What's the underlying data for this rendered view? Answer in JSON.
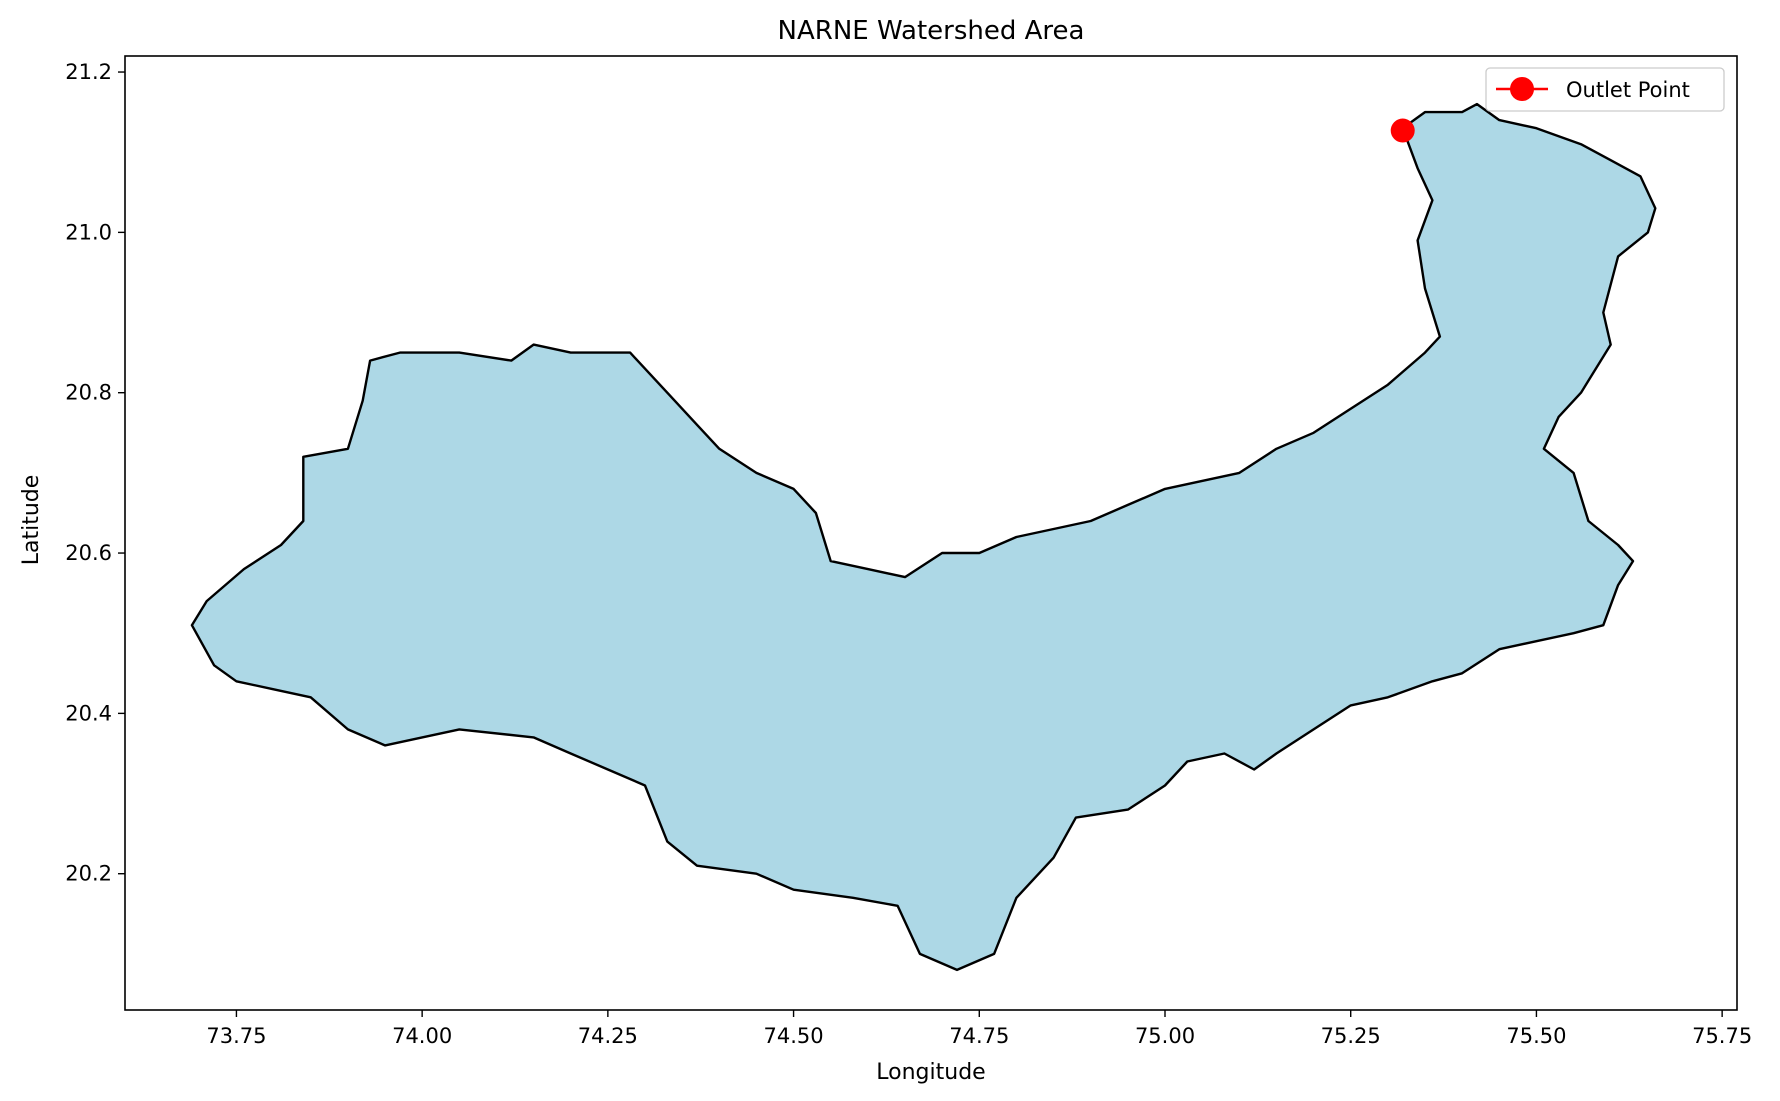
{
  "chart_data": {
    "type": "map",
    "title": "NARNE Watershed Area",
    "xlabel": "Longitude",
    "ylabel": "Latitude",
    "xlim": [
      73.6,
      75.77
    ],
    "ylim": [
      20.03,
      21.22
    ],
    "xticks": [
      "73.75",
      "74.00",
      "74.25",
      "74.50",
      "74.75",
      "75.00",
      "75.25",
      "75.50",
      "75.75"
    ],
    "yticks": [
      "20.2",
      "20.4",
      "20.6",
      "20.8",
      "21.0",
      "21.2"
    ],
    "grid": false,
    "legend": {
      "position": "top-right",
      "entries": [
        "Outlet Point"
      ]
    },
    "watershed": {
      "fill": "#add8e6",
      "edge": "#000000",
      "boundary": [
        [
          75.32,
          21.13
        ],
        [
          75.35,
          21.15
        ],
        [
          75.4,
          21.15
        ],
        [
          75.42,
          21.16
        ],
        [
          75.45,
          21.14
        ],
        [
          75.5,
          21.13
        ],
        [
          75.56,
          21.11
        ],
        [
          75.6,
          21.09
        ],
        [
          75.64,
          21.07
        ],
        [
          75.66,
          21.03
        ],
        [
          75.65,
          21.0
        ],
        [
          75.61,
          20.97
        ],
        [
          75.59,
          20.9
        ],
        [
          75.6,
          20.86
        ],
        [
          75.56,
          20.8
        ],
        [
          75.53,
          20.77
        ],
        [
          75.51,
          20.73
        ],
        [
          75.55,
          20.7
        ],
        [
          75.57,
          20.64
        ],
        [
          75.61,
          20.61
        ],
        [
          75.63,
          20.59
        ],
        [
          75.61,
          20.56
        ],
        [
          75.59,
          20.51
        ],
        [
          75.55,
          20.5
        ],
        [
          75.5,
          20.49
        ],
        [
          75.45,
          20.48
        ],
        [
          75.4,
          20.45
        ],
        [
          75.36,
          20.44
        ],
        [
          75.3,
          20.42
        ],
        [
          75.25,
          20.41
        ],
        [
          75.2,
          20.38
        ],
        [
          75.15,
          20.35
        ],
        [
          75.12,
          20.33
        ],
        [
          75.08,
          20.35
        ],
        [
          75.03,
          20.34
        ],
        [
          75.0,
          20.31
        ],
        [
          74.95,
          20.28
        ],
        [
          74.88,
          20.27
        ],
        [
          74.85,
          20.22
        ],
        [
          74.8,
          20.17
        ],
        [
          74.77,
          20.1
        ],
        [
          74.72,
          20.08
        ],
        [
          74.67,
          20.1
        ],
        [
          74.64,
          20.16
        ],
        [
          74.58,
          20.17
        ],
        [
          74.5,
          20.18
        ],
        [
          74.45,
          20.2
        ],
        [
          74.37,
          20.21
        ],
        [
          74.33,
          20.24
        ],
        [
          74.3,
          20.31
        ],
        [
          74.25,
          20.33
        ],
        [
          74.2,
          20.35
        ],
        [
          74.15,
          20.37
        ],
        [
          74.05,
          20.38
        ],
        [
          74.0,
          20.37
        ],
        [
          73.95,
          20.36
        ],
        [
          73.9,
          20.38
        ],
        [
          73.85,
          20.42
        ],
        [
          73.8,
          20.43
        ],
        [
          73.75,
          20.44
        ],
        [
          73.72,
          20.46
        ],
        [
          73.69,
          20.51
        ],
        [
          73.71,
          20.54
        ],
        [
          73.76,
          20.58
        ],
        [
          73.81,
          20.61
        ],
        [
          73.84,
          20.64
        ],
        [
          73.84,
          20.72
        ],
        [
          73.9,
          20.73
        ],
        [
          73.92,
          20.79
        ],
        [
          73.93,
          20.84
        ],
        [
          73.97,
          20.85
        ],
        [
          74.05,
          20.85
        ],
        [
          74.12,
          20.84
        ],
        [
          74.15,
          20.86
        ],
        [
          74.2,
          20.85
        ],
        [
          74.28,
          20.85
        ],
        [
          74.33,
          20.8
        ],
        [
          74.37,
          20.76
        ],
        [
          74.4,
          20.73
        ],
        [
          74.45,
          20.7
        ],
        [
          74.5,
          20.68
        ],
        [
          74.53,
          20.65
        ],
        [
          74.55,
          20.59
        ],
        [
          74.6,
          20.58
        ],
        [
          74.65,
          20.57
        ],
        [
          74.7,
          20.6
        ],
        [
          74.75,
          20.6
        ],
        [
          74.8,
          20.62
        ],
        [
          74.85,
          20.63
        ],
        [
          74.9,
          20.64
        ],
        [
          74.95,
          20.66
        ],
        [
          75.0,
          20.68
        ],
        [
          75.05,
          20.69
        ],
        [
          75.1,
          20.7
        ],
        [
          75.15,
          20.73
        ],
        [
          75.2,
          20.75
        ],
        [
          75.25,
          20.78
        ],
        [
          75.3,
          20.81
        ],
        [
          75.35,
          20.85
        ],
        [
          75.37,
          20.87
        ],
        [
          75.35,
          20.93
        ],
        [
          75.34,
          20.99
        ],
        [
          75.36,
          21.04
        ],
        [
          75.34,
          21.08
        ]
      ]
    },
    "outlet_point": {
      "name": "Outlet Point",
      "x": 75.32,
      "y": 21.127,
      "color": "#ff0000"
    }
  }
}
